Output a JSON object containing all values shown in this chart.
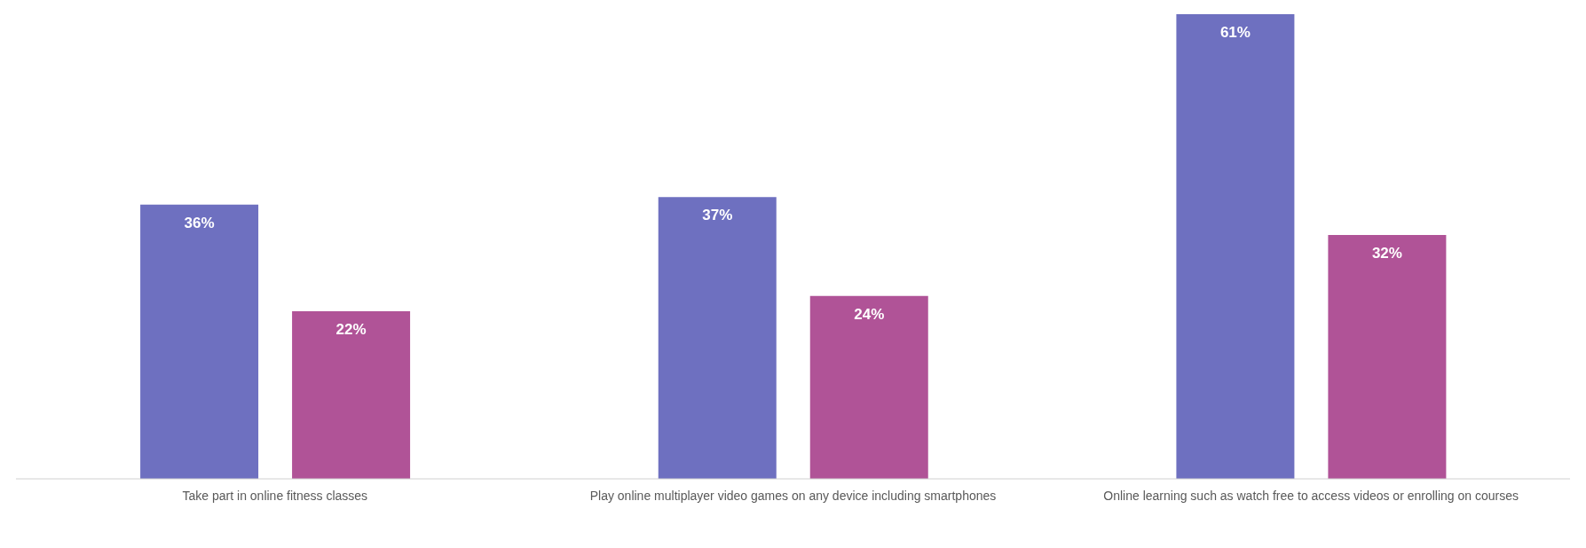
{
  "chart_data": {
    "type": "bar",
    "categories": [
      "Take part in online fitness classes",
      "Play online multiplayer video games on any device including smartphones",
      "Online learning such as watch free to access videos or enrolling on courses"
    ],
    "series": [
      {
        "color": "#6e70c0",
        "values": [
          36,
          37,
          61
        ],
        "value_labels": [
          "36%",
          "37%",
          "61%"
        ]
      },
      {
        "color": "#b05397",
        "values": [
          22,
          24,
          32
        ],
        "value_labels": [
          "22%",
          "24%",
          "32%"
        ]
      }
    ],
    "grid": false,
    "legend": false
  }
}
